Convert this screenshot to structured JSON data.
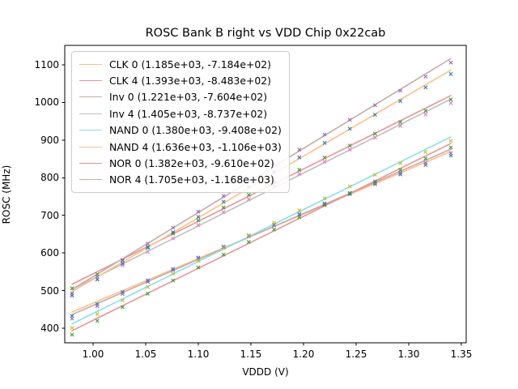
{
  "chart_data": {
    "type": "scatter",
    "title": "ROSC Bank B right vs VDD Chip 0x22cab",
    "xlabel": "VDDD (V)",
    "ylabel": "ROSC (MHz)",
    "xlim": [
      0.97308,
      1.35462
    ],
    "ylim": [
      361.2,
      1151.7
    ],
    "xticks": {
      "values": [
        1.0,
        1.05,
        1.1,
        1.15,
        1.2,
        1.25,
        1.3,
        1.35
      ],
      "labels": [
        "1.00",
        "1.05",
        "1.10",
        "1.15",
        "1.20",
        "1.25",
        "1.30",
        "1.35"
      ]
    },
    "yticks": {
      "values": [
        400,
        500,
        600,
        700,
        800,
        900,
        1000,
        1100
      ],
      "labels": [
        "400",
        "500",
        "600",
        "700",
        "800",
        "900",
        "1000",
        "1100"
      ]
    },
    "grid": false,
    "legend_position": "upper left",
    "marker_style": "x",
    "x": [
      0.98,
      1.004,
      1.028,
      1.052,
      1.076,
      1.1,
      1.124,
      1.148,
      1.172,
      1.196,
      1.22,
      1.244,
      1.268,
      1.292,
      1.316,
      1.34
    ],
    "deviation_from_fit": [
      -10.6,
      -7.0,
      -3.8,
      -1.2,
      0.8,
      2.4,
      3.4,
      3.9,
      3.9,
      3.4,
      2.4,
      0.8,
      -1.2,
      -3.8,
      -7.0,
      -10.6
    ],
    "fit_line_x_range": [
      0.98,
      1.34
    ],
    "series": [
      {
        "name": "CLK 0",
        "legend_label": "CLK 0 (1.185e+03, -7.184e+02)",
        "slope": 1185,
        "intercept": -718.4,
        "line_color": "#ffbf86",
        "marker_color": "#1f77b4"
      },
      {
        "name": "CLK 4",
        "legend_label": "CLK 4 (1.393e+03, -8.483e+02)",
        "slope": 1393,
        "intercept": -848.3,
        "line_color": "#ea9393",
        "marker_color": "#2ca02c"
      },
      {
        "name": "Inv 0",
        "legend_label": "Inv 0 (1.221e+03, -7.604e+02)",
        "slope": 1221,
        "intercept": -760.4,
        "line_color": "#c6aba5",
        "marker_color": "#9467bd"
      },
      {
        "name": "Inv 4",
        "legend_label": "Inv 4 (1.405e+03, -8.737e+02)",
        "slope": 1405,
        "intercept": -873.7,
        "line_color": "#bfbfbf",
        "marker_color": "#e377c2"
      },
      {
        "name": "NAND 0",
        "legend_label": "NAND 0 (1.380e+03, -9.408e+02)",
        "slope": 1380,
        "intercept": -940.8,
        "line_color": "#8bdee7",
        "marker_color": "#bcbd22"
      },
      {
        "name": "NAND 4",
        "legend_label": "NAND 4 (1.636e+03, -1.106e+03)",
        "slope": 1636,
        "intercept": -1106.0,
        "line_color": "#ffbf86",
        "marker_color": "#1f77b4"
      },
      {
        "name": "NOR 0",
        "legend_label": "NOR 0 (1.382e+03, -9.610e+02)",
        "slope": 1382,
        "intercept": -961.0,
        "line_color": "#ea9393",
        "marker_color": "#2ca02c"
      },
      {
        "name": "NOR 4",
        "legend_label": "NOR 4 (1.705e+03, -1.168e+03)",
        "slope": 1705,
        "intercept": -1168.0,
        "line_color": "#c6aba5",
        "marker_color": "#9467bd"
      }
    ],
    "colors": {
      "spine": "#000000",
      "tick": "#000000",
      "text": "#000000",
      "legend_border": "#cccccc",
      "background": "#ffffff"
    }
  }
}
